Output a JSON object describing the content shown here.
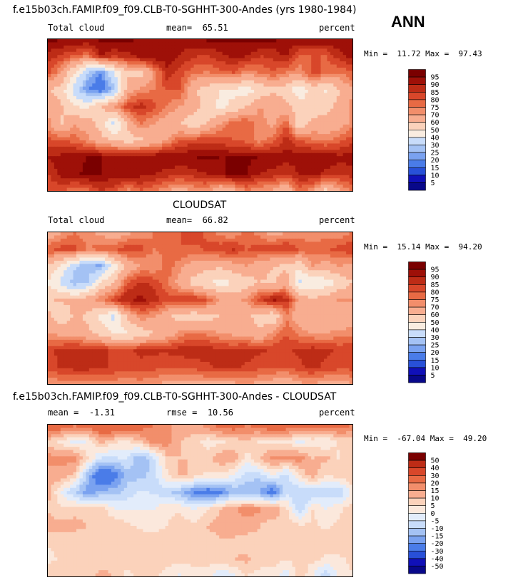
{
  "header": {
    "title": "f.e15b03ch.FAMIP.f09_f09.CLB-T0-SGHHT-300-Andes (yrs 1980-1984)",
    "season": "ANN"
  },
  "colors": {
    "abs_scale": [
      "#08088a",
      "#1010b8",
      "#2850d8",
      "#4a7ce8",
      "#7aa2f0",
      "#a4c2f4",
      "#c8dcfa",
      "#f9ece0",
      "#fbd2bb",
      "#f8ad90",
      "#f28e6b",
      "#e86a44",
      "#d8472a",
      "#bd2c16",
      "#9e1008",
      "#7a0000"
    ],
    "diff_scale": [
      "#08088a",
      "#1010b8",
      "#2850d8",
      "#4a7ce8",
      "#7aa2f0",
      "#a4c2f4",
      "#c8dcfa",
      "#e2ecfb",
      "#fbe8dc",
      "#fbd2bb",
      "#f8ad90",
      "#f28e6b",
      "#e86a44",
      "#d8472a",
      "#bd2c16",
      "#7a0000"
    ]
  },
  "chart_data": [
    {
      "type": "heatmap",
      "panel": "model",
      "variable": "Total cloud",
      "mean_label": "mean=",
      "mean": "65.51",
      "units": "percent",
      "min_label": "Min =",
      "min": "11.72",
      "max_label": "Max =",
      "max": "97.43",
      "colorbar_levels": [
        "95",
        "90",
        "85",
        "80",
        "75",
        "70",
        "60",
        "50",
        "40",
        "30",
        "25",
        "20",
        "15",
        "10",
        "5"
      ],
      "field": [
        [
          96,
          96,
          96,
          95,
          96,
          97,
          96,
          95,
          93,
          92,
          92,
          94,
          96,
          97,
          96,
          96,
          97,
          96,
          95,
          96,
          94,
          94,
          95,
          94
        ],
        [
          88,
          84,
          80,
          75,
          90,
          86,
          88,
          93,
          95,
          94,
          90,
          86,
          84,
          88,
          92,
          90,
          85,
          86,
          91,
          78,
          80,
          80,
          88,
          92
        ],
        [
          82,
          70,
          50,
          30,
          18,
          40,
          58,
          55,
          70,
          88,
          82,
          76,
          74,
          78,
          80,
          72,
          75,
          80,
          74,
          72,
          82,
          78,
          75,
          80
        ],
        [
          60,
          55,
          35,
          20,
          15,
          28,
          65,
          72,
          75,
          80,
          80,
          62,
          55,
          50,
          48,
          45,
          52,
          58,
          55,
          42,
          55,
          48,
          60,
          70
        ],
        [
          70,
          62,
          50,
          48,
          60,
          72,
          82,
          88,
          82,
          74,
          70,
          65,
          55,
          48,
          52,
          60,
          70,
          68,
          62,
          55,
          52,
          58,
          62,
          72
        ],
        [
          72,
          58,
          70,
          65,
          55,
          35,
          62,
          75,
          70,
          65,
          60,
          52,
          60,
          70,
          80,
          80,
          72,
          68,
          80,
          50,
          65,
          62,
          66,
          72
        ],
        [
          82,
          80,
          78,
          72,
          64,
          60,
          55,
          58,
          62,
          70,
          80,
          82,
          84,
          82,
          80,
          78,
          72,
          78,
          88,
          80,
          76,
          74,
          78,
          84
        ],
        [
          90,
          92,
          94,
          95,
          95,
          94,
          93,
          94,
          95,
          95,
          94,
          95,
          96,
          95,
          95,
          96,
          95,
          94,
          92,
          94,
          95,
          94,
          92,
          92
        ],
        [
          85,
          92,
          94,
          96,
          95,
          93,
          94,
          92,
          90,
          88,
          86,
          88,
          90,
          94,
          96,
          95,
          90,
          88,
          85,
          90,
          92,
          88,
          86,
          88
        ],
        [
          80,
          82,
          75,
          78,
          85,
          82,
          72,
          80,
          76,
          70,
          65,
          70,
          72,
          60,
          65,
          75,
          70,
          68,
          60,
          78,
          70,
          55,
          68,
          75
        ]
      ]
    },
    {
      "type": "heatmap",
      "panel": "observation",
      "subtitle": "CLOUDSAT",
      "variable": "Total cloud",
      "mean_label": "mean=",
      "mean": "66.82",
      "units": "percent",
      "min_label": "Min =",
      "min": "15.14",
      "max_label": "Max =",
      "max": "94.20",
      "colorbar_levels": [
        "95",
        "90",
        "85",
        "80",
        "75",
        "70",
        "60",
        "50",
        "40",
        "30",
        "25",
        "20",
        "15",
        "10",
        "5"
      ],
      "field": [
        [
          62,
          70,
          75,
          72,
          68,
          62,
          68,
          72,
          75,
          78,
          80,
          84,
          78,
          72,
          70,
          78,
          72,
          65,
          70,
          72,
          70,
          72,
          70,
          76
        ],
        [
          80,
          82,
          82,
          75,
          78,
          80,
          84,
          82,
          75,
          76,
          80,
          78,
          82,
          84,
          86,
          80,
          82,
          84,
          86,
          80,
          78,
          80,
          82,
          84
        ],
        [
          60,
          48,
          32,
          25,
          22,
          45,
          62,
          70,
          70,
          78,
          72,
          66,
          64,
          62,
          66,
          70,
          64,
          60,
          58,
          52,
          70,
          66,
          70,
          68
        ],
        [
          48,
          38,
          26,
          30,
          52,
          60,
          80,
          86,
          84,
          76,
          66,
          56,
          50,
          46,
          50,
          54,
          60,
          58,
          65,
          38,
          40,
          44,
          52,
          60
        ],
        [
          58,
          62,
          60,
          66,
          74,
          84,
          90,
          92,
          88,
          82,
          84,
          86,
          80,
          70,
          66,
          72,
          84,
          92,
          88,
          66,
          62,
          66,
          72,
          70
        ],
        [
          62,
          52,
          62,
          58,
          48,
          36,
          62,
          74,
          70,
          62,
          56,
          52,
          56,
          60,
          66,
          62,
          56,
          50,
          74,
          62,
          60,
          62,
          62,
          64
        ],
        [
          70,
          68,
          66,
          62,
          56,
          50,
          48,
          54,
          60,
          65,
          72,
          76,
          74,
          70,
          68,
          66,
          62,
          72,
          80,
          74,
          70,
          70,
          72,
          74
        ],
        [
          84,
          86,
          88,
          88,
          86,
          84,
          84,
          86,
          86,
          86,
          88,
          88,
          88,
          86,
          86,
          88,
          86,
          84,
          84,
          86,
          88,
          86,
          84,
          84
        ],
        [
          82,
          86,
          88,
          88,
          86,
          84,
          84,
          84,
          82,
          80,
          80,
          82,
          84,
          86,
          86,
          84,
          82,
          80,
          80,
          84,
          86,
          84,
          82,
          82
        ],
        [
          70,
          72,
          70,
          70,
          74,
          72,
          70,
          72,
          70,
          68,
          66,
          66,
          68,
          66,
          68,
          70,
          68,
          66,
          64,
          68,
          70,
          66,
          66,
          70
        ]
      ]
    },
    {
      "type": "heatmap",
      "panel": "difference",
      "title": "f.e15b03ch.FAMIP.f09_f09.CLB-T0-SGHHT-300-Andes - CLOUDSAT",
      "mean_label": "mean =",
      "mean": "-1.31",
      "rmse_label": "rmse =",
      "rmse": "10.56",
      "units": "percent",
      "min_label": "Min =",
      "min": "-67.04",
      "max_label": "Max =",
      "max": "49.20",
      "colorbar_levels": [
        "50",
        "40",
        "30",
        "20",
        "15",
        "10",
        "5",
        "0",
        "-5",
        "-10",
        "-15",
        "-20",
        "-30",
        "-40",
        "-50"
      ],
      "field": [
        [
          30,
          26,
          22,
          24,
          28,
          32,
          30,
          24,
          20,
          16,
          14,
          12,
          18,
          24,
          26,
          20,
          24,
          30,
          26,
          24,
          24,
          22,
          24,
          20
        ],
        [
          8,
          3,
          -2,
          0,
          12,
          6,
          4,
          10,
          18,
          18,
          10,
          8,
          2,
          4,
          6,
          10,
          4,
          2,
          4,
          -2,
          2,
          0,
          6,
          8
        ],
        [
          18,
          16,
          18,
          6,
          -6,
          -6,
          -4,
          -16,
          -6,
          8,
          10,
          10,
          8,
          14,
          14,
          2,
          10,
          18,
          16,
          18,
          10,
          12,
          4,
          10
        ],
        [
          12,
          14,
          8,
          -12,
          -30,
          -25,
          -12,
          -12,
          -8,
          4,
          12,
          8,
          4,
          4,
          0,
          -8,
          -8,
          0,
          -8,
          5,
          14,
          4,
          8,
          10
        ],
        [
          12,
          0,
          -10,
          -18,
          -14,
          -12,
          -8,
          -4,
          -6,
          -8,
          -14,
          -20,
          -25,
          -22,
          -14,
          -14,
          -16,
          -25,
          -6,
          -10,
          -10,
          -8,
          -10,
          2
        ],
        [
          10,
          6,
          8,
          8,
          8,
          0,
          0,
          0,
          0,
          4,
          4,
          0,
          4,
          10,
          14,
          18,
          16,
          16,
          6,
          -10,
          5,
          0,
          4,
          8
        ],
        [
          12,
          12,
          12,
          10,
          8,
          10,
          6,
          4,
          2,
          5,
          8,
          6,
          10,
          12,
          12,
          12,
          10,
          6,
          8,
          6,
          6,
          4,
          6,
          10
        ],
        [
          6,
          6,
          6,
          7,
          9,
          10,
          9,
          8,
          9,
          9,
          6,
          7,
          8,
          9,
          9,
          8,
          9,
          10,
          8,
          8,
          7,
          8,
          8,
          8
        ],
        [
          3,
          6,
          6,
          8,
          9,
          9,
          10,
          8,
          8,
          8,
          6,
          6,
          6,
          8,
          10,
          11,
          8,
          8,
          5,
          6,
          6,
          4,
          4,
          6
        ],
        [
          10,
          10,
          5,
          8,
          11,
          10,
          2,
          8,
          6,
          2,
          -1,
          4,
          4,
          -6,
          -3,
          5,
          2,
          2,
          -4,
          10,
          0,
          -11,
          2,
          5
        ]
      ]
    }
  ]
}
